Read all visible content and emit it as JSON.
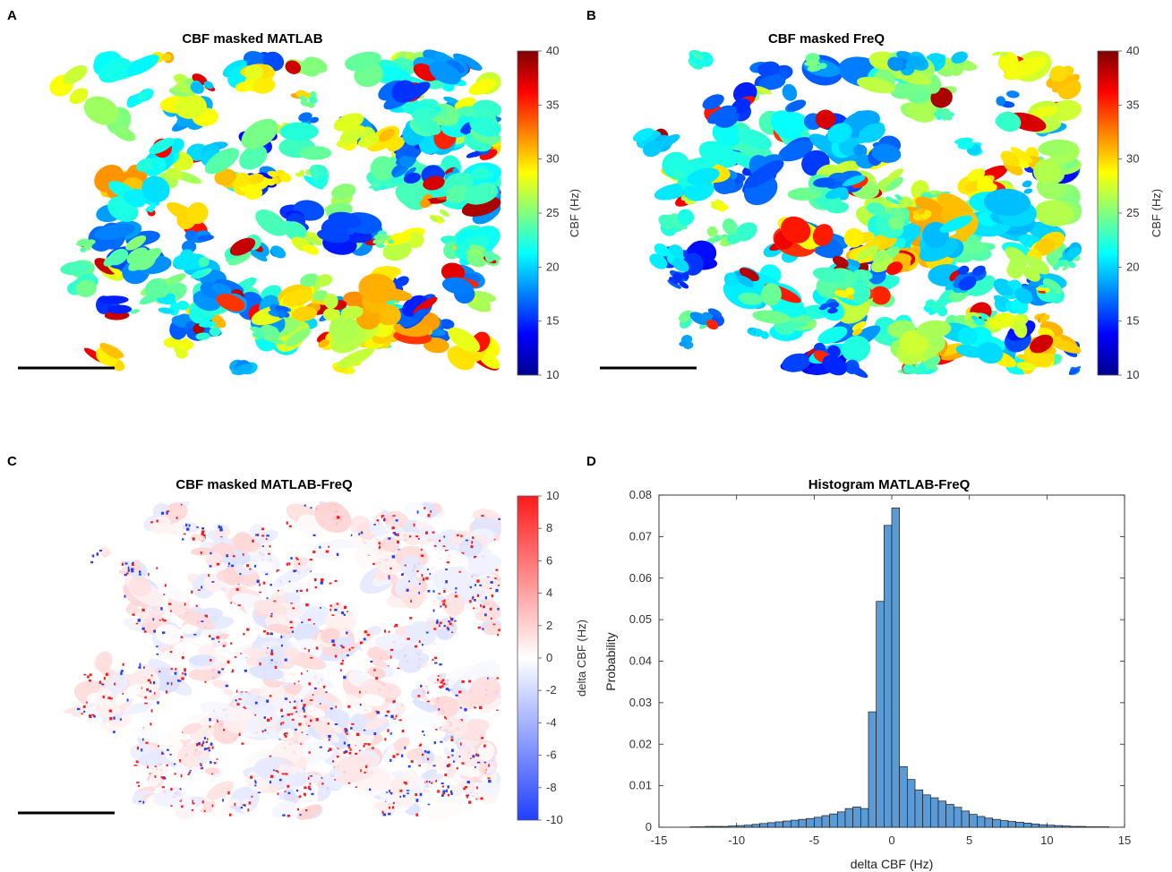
{
  "panels": {
    "A": {
      "letter": "A",
      "title": "CBF masked MATLAB",
      "cbar_label": "CBF (Hz)",
      "cbar_ticks": [
        "40",
        "35",
        "30",
        "25",
        "20",
        "15",
        "10"
      ],
      "colormap": "jet"
    },
    "B": {
      "letter": "B",
      "title": "CBF masked FreQ",
      "cbar_label": "CBF (Hz)",
      "cbar_ticks": [
        "40",
        "35",
        "30",
        "25",
        "20",
        "15",
        "10"
      ],
      "colormap": "jet"
    },
    "C": {
      "letter": "C",
      "title": "CBF masked MATLAB-FreQ",
      "cbar_label": "delta CBF (Hz)",
      "cbar_ticks": [
        "10",
        "8",
        "6",
        "4",
        "2",
        "0",
        "-2",
        "-4",
        "-6",
        "-8",
        "-10"
      ],
      "colormap": "blue-white-red"
    },
    "D": {
      "letter": "D"
    }
  },
  "colors": {
    "bar_fill": "#5b9bd5",
    "bar_edge": "#1a1a1a",
    "scale_bar": "#000000",
    "diverging_neg": "#1f3fff",
    "diverging_pos": "#ff1a1a"
  },
  "chart_data": {
    "type": "bar",
    "title": "Histogram MATLAB-FreQ",
    "xlabel": "delta CBF (Hz)",
    "ylabel": "Probability",
    "xlim": [
      -15,
      15
    ],
    "ylim": [
      0,
      0.08
    ],
    "xticks": [
      "-15",
      "-10",
      "-5",
      "0",
      "5",
      "10",
      "15"
    ],
    "yticks": [
      "0",
      "0.01",
      "0.02",
      "0.03",
      "0.04",
      "0.05",
      "0.06",
      "0.07",
      "0.08"
    ],
    "bin_width": 0.5,
    "bin_start": -13,
    "values": [
      0.0001,
      0.0001,
      0.0002,
      0.0002,
      0.0002,
      0.0003,
      0.0004,
      0.0005,
      0.0007,
      0.0009,
      0.0011,
      0.0013,
      0.0015,
      0.0017,
      0.0019,
      0.0021,
      0.0024,
      0.0028,
      0.0032,
      0.0037,
      0.0045,
      0.0049,
      0.0045,
      0.0278,
      0.0544,
      0.0727,
      0.0769,
      0.0146,
      0.0115,
      0.009,
      0.0078,
      0.0071,
      0.0063,
      0.0055,
      0.0048,
      0.0039,
      0.0031,
      0.0026,
      0.0022,
      0.0019,
      0.0016,
      0.0014,
      0.0012,
      0.001,
      0.0008,
      0.0006,
      0.0005,
      0.0004,
      0.0003,
      0.0002,
      0.0002,
      0.0001,
      0.0001,
      0.0001
    ]
  }
}
